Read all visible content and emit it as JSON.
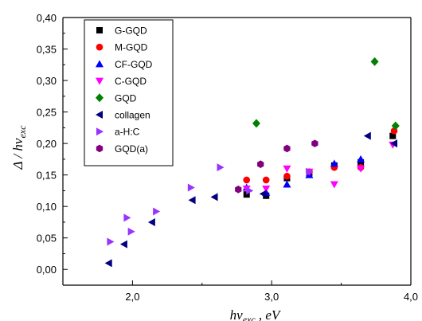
{
  "chart_data": {
    "type": "scatter",
    "xlabel": "hν_exc , eV",
    "ylabel": "Δ / hν_exc",
    "xlim": [
      1.5,
      4.0
    ],
    "ylim": [
      -0.025,
      0.4
    ],
    "x_ticks": [
      "2,0",
      "3,0",
      "4,0"
    ],
    "x_tick_values": [
      2.0,
      3.0,
      4.0
    ],
    "y_ticks": [
      "0,00",
      "0,05",
      "0,10",
      "0,15",
      "0,20",
      "0,25",
      "0,30",
      "0,35",
      "0,40"
    ],
    "y_tick_values": [
      0.0,
      0.05,
      0.1,
      0.15,
      0.2,
      0.25,
      0.3,
      0.35,
      0.4
    ],
    "legend_position": "top-left",
    "series": [
      {
        "name": "G-GQD",
        "marker": "square",
        "color": "#000000",
        "x": [
          2.82,
          2.96,
          3.11,
          3.27,
          3.45,
          3.64,
          3.87
        ],
        "y": [
          0.119,
          0.117,
          0.145,
          0.153,
          0.165,
          0.17,
          0.212
        ]
      },
      {
        "name": "M-GQD",
        "marker": "circle",
        "color": "#ff0000",
        "x": [
          2.82,
          2.96,
          3.11,
          3.27,
          3.45,
          3.64,
          3.88
        ],
        "y": [
          0.142,
          0.142,
          0.148,
          0.155,
          0.162,
          0.162,
          0.22
        ]
      },
      {
        "name": "CF-GQD",
        "marker": "triangle-up",
        "color": "#0000ff",
        "x": [
          2.82,
          2.96,
          3.11,
          3.27,
          3.45,
          3.64
        ],
        "y": [
          0.13,
          0.122,
          0.135,
          0.15,
          0.168,
          0.175
        ]
      },
      {
        "name": "C-GQD",
        "marker": "triangle-down",
        "color": "#ff00ff",
        "x": [
          2.82,
          2.96,
          3.11,
          3.27,
          3.45,
          3.64,
          3.87
        ],
        "y": [
          0.128,
          0.128,
          0.16,
          0.155,
          0.135,
          0.16,
          0.198
        ]
      },
      {
        "name": "GQD",
        "marker": "diamond",
        "color": "#008000",
        "x": [
          2.89,
          3.74,
          3.89
        ],
        "y": [
          0.232,
          0.33,
          0.228
        ]
      },
      {
        "name": "collagen",
        "marker": "triangle-left",
        "color": "#000080",
        "x": [
          1.83,
          1.94,
          2.14,
          2.43,
          2.59,
          2.94,
          3.69,
          3.88
        ],
        "y": [
          0.01,
          0.04,
          0.075,
          0.11,
          0.115,
          0.12,
          0.212,
          0.2
        ]
      },
      {
        "name": "a-H:C",
        "marker": "triangle-right",
        "color": "#9933ff",
        "x": [
          1.84,
          1.96,
          1.99,
          2.17,
          2.42,
          2.63,
          2.84,
          3.27
        ],
        "y": [
          0.044,
          0.082,
          0.06,
          0.092,
          0.13,
          0.162,
          0.125,
          0.155
        ]
      },
      {
        "name": "GQD(a)",
        "marker": "hexagon",
        "color": "#800080",
        "x": [
          2.76,
          2.92,
          3.11,
          3.31
        ],
        "y": [
          0.127,
          0.167,
          0.192,
          0.2
        ]
      }
    ]
  }
}
